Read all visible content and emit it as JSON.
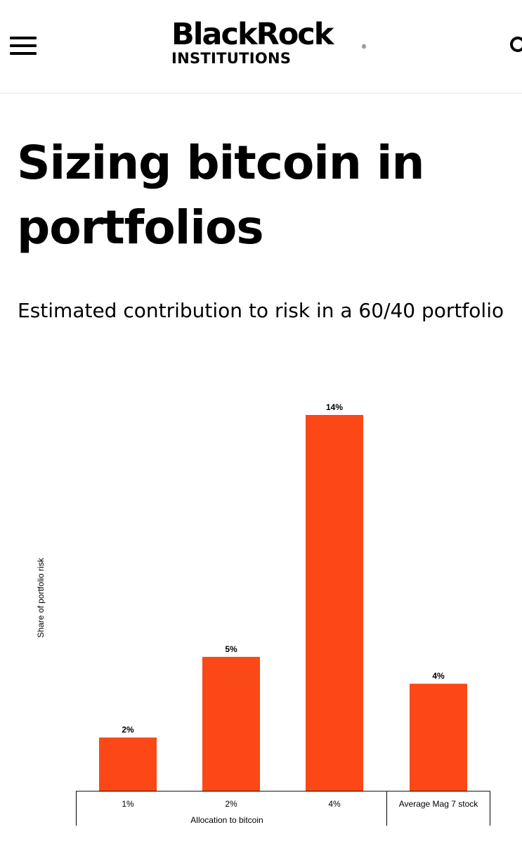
{
  "header": {
    "brand_main": "BlackRock",
    "brand_reg": "®",
    "brand_sub": "INSTITUTIONS",
    "menu_icon": "hamburger-menu-icon",
    "search_icon": "search-icon"
  },
  "page": {
    "title": "Sizing bitcoin in portfolios",
    "subtitle": "Estimated contribution to risk in a 60/40 portfolio"
  },
  "chart_data": {
    "type": "bar",
    "categories": [
      "1%",
      "2%",
      "4%",
      "Average Mag 7 stock"
    ],
    "values": [
      2,
      5,
      14,
      4
    ],
    "data_labels": [
      "2%",
      "5%",
      "14%",
      "4%"
    ],
    "xlabel": "Allocation to bitcoin",
    "ylabel": "Share of portfolio risk",
    "ylim": [
      0,
      14
    ],
    "grid": false,
    "bar_color": "#fc4716"
  }
}
